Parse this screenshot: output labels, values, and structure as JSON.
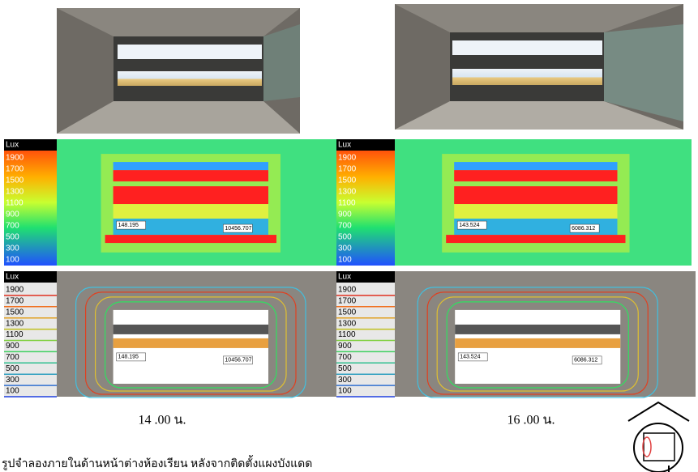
{
  "lux_scale": {
    "unit": "Lux",
    "levels": [
      1900,
      1700,
      1500,
      1300,
      1100,
      900,
      700,
      500,
      300,
      100
    ]
  },
  "figures": [
    {
      "caption": "14 .00 น.",
      "readings": [
        "148.195",
        "10456.707"
      ]
    },
    {
      "caption": "16 .00 น.",
      "readings": [
        "143.524",
        "6086.312"
      ]
    }
  ],
  "figure_caption": "รูปจำลองภายในด้านหน้าต่างห้องเรียน หลังจากติดตั้งแผงบังแดด"
}
